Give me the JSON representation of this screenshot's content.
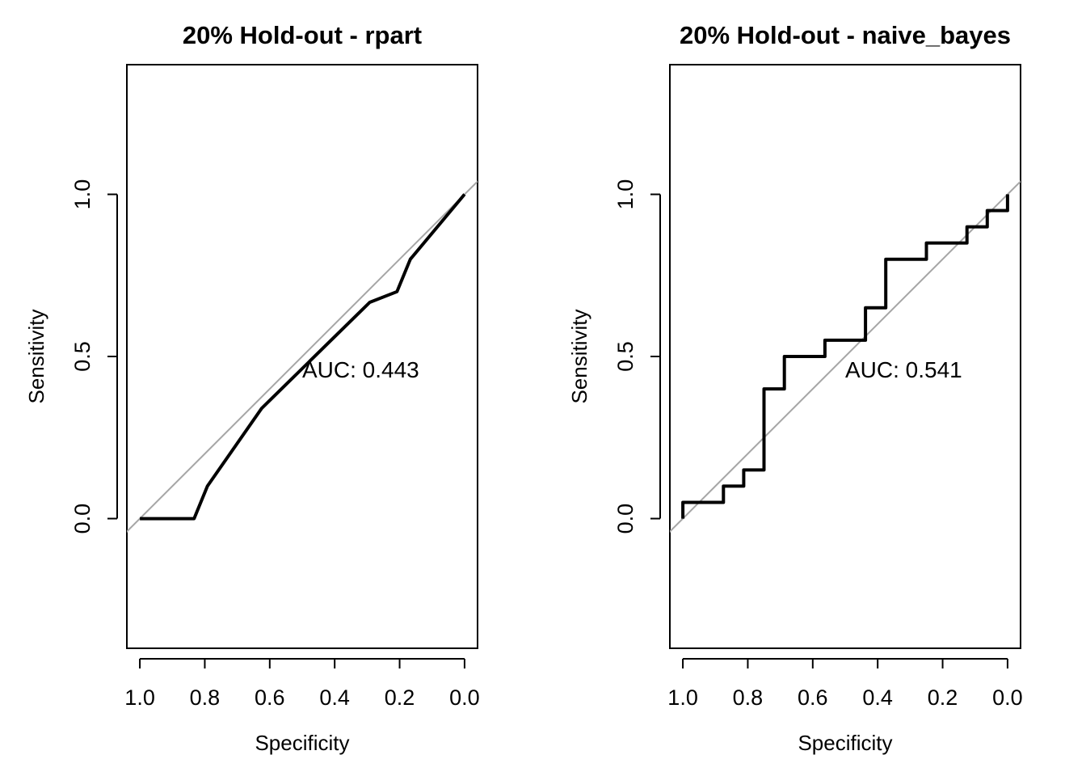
{
  "chart_data": [
    {
      "type": "line",
      "title": "20% Hold-out - rpart",
      "xlabel": "Specificity",
      "ylabel": "Sensitivity",
      "xlim": [
        1.04,
        -0.04
      ],
      "ylim": [
        -0.4,
        1.4
      ],
      "x_reversed": true,
      "xticks": [
        1.0,
        0.8,
        0.6,
        0.4,
        0.2,
        0.0
      ],
      "xtick_labels": [
        "1.0",
        "0.8",
        "0.6",
        "0.4",
        "0.2",
        "0.0"
      ],
      "yticks": [
        0.0,
        0.5,
        1.0
      ],
      "ytick_labels": [
        "0.0",
        "0.5",
        "1.0"
      ],
      "auc_label": "AUC: 0.443",
      "auc_label_pos": [
        0.5,
        0.46
      ],
      "diagonal": true,
      "curve": {
        "specificity": [
          1.0,
          0.833,
          0.792,
          0.625,
          0.292,
          0.208,
          0.167,
          0.0
        ],
        "sensitivity": [
          0.0,
          0.0,
          0.1,
          0.34,
          0.667,
          0.7,
          0.8,
          1.0
        ]
      }
    },
    {
      "type": "line",
      "title": "20% Hold-out - naive_bayes",
      "xlabel": "Specificity",
      "ylabel": "Sensitivity",
      "xlim": [
        1.04,
        -0.04
      ],
      "ylim": [
        -0.4,
        1.4
      ],
      "x_reversed": true,
      "xticks": [
        1.0,
        0.8,
        0.6,
        0.4,
        0.2,
        0.0
      ],
      "xtick_labels": [
        "1.0",
        "0.8",
        "0.6",
        "0.4",
        "0.2",
        "0.0"
      ],
      "yticks": [
        0.0,
        0.5,
        1.0
      ],
      "ytick_labels": [
        "0.0",
        "0.5",
        "1.0"
      ],
      "auc_label": "AUC: 0.541",
      "auc_label_pos": [
        0.5,
        0.46
      ],
      "diagonal": true,
      "curve": {
        "specificity": [
          1.0,
          1.0,
          0.875,
          0.875,
          0.8125,
          0.8125,
          0.75,
          0.75,
          0.6875,
          0.6875,
          0.5625,
          0.5625,
          0.4375,
          0.4375,
          0.375,
          0.375,
          0.25,
          0.25,
          0.125,
          0.125,
          0.0625,
          0.0625,
          0.0,
          0.0
        ],
        "sensitivity": [
          0.0,
          0.05,
          0.05,
          0.1,
          0.1,
          0.15,
          0.15,
          0.4,
          0.4,
          0.5,
          0.5,
          0.55,
          0.55,
          0.65,
          0.65,
          0.8,
          0.8,
          0.85,
          0.85,
          0.9,
          0.9,
          0.95,
          0.95,
          1.0
        ]
      }
    }
  ]
}
